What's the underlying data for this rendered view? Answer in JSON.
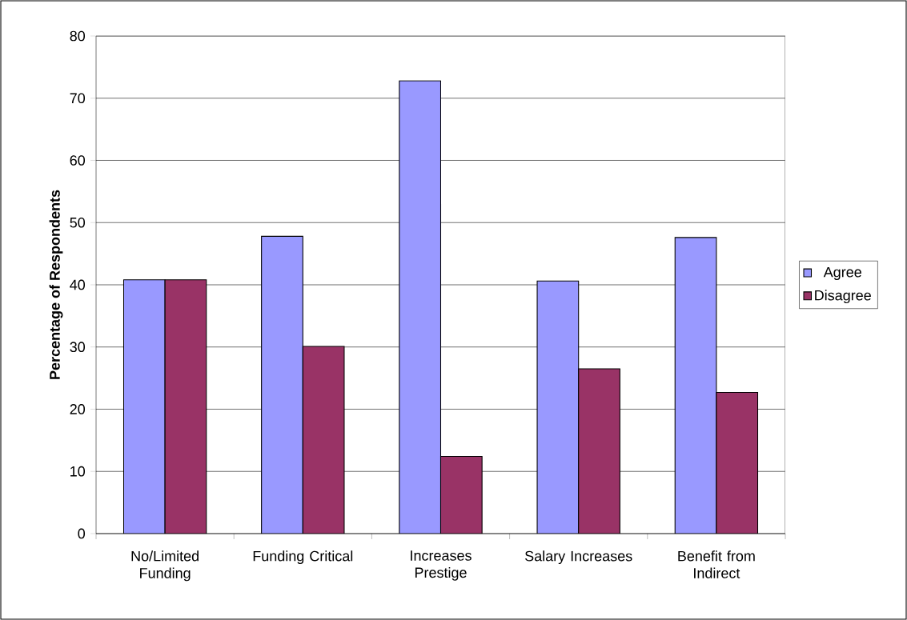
{
  "chart_data": {
    "type": "bar",
    "ylabel": "Percentage of Respondents",
    "categories": [
      "No/Limited Funding",
      "Funding Critical",
      "Increases Prestige",
      "Salary Increases",
      "Benefit from Indirect"
    ],
    "series": [
      {
        "name": "Agree",
        "color": "#9999ff",
        "values": [
          40.8,
          47.8,
          72.8,
          40.6,
          47.6
        ]
      },
      {
        "name": "Disagree",
        "color": "#993366",
        "values": [
          40.8,
          30.1,
          12.4,
          26.5,
          22.7
        ]
      }
    ],
    "ylim": [
      0,
      80
    ],
    "yticks": [
      0,
      10,
      20,
      30,
      40,
      50,
      60,
      70,
      80
    ],
    "grid": "y",
    "legend": "right"
  }
}
